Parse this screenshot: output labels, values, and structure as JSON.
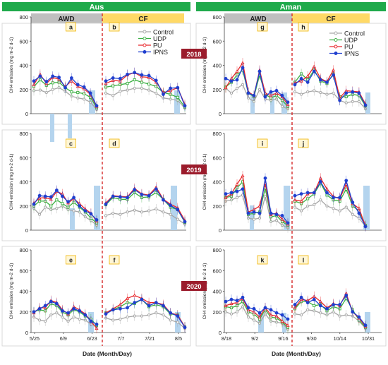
{
  "season_headers": [
    {
      "label": "Aus",
      "color": "#1faa4b"
    },
    {
      "label": "Aman",
      "color": "#1faa4b"
    }
  ],
  "treatment_headers": [
    {
      "label": "AWD",
      "color": "#bfbfbf"
    },
    {
      "label": "CF",
      "color": "#ffd966"
    },
    {
      "label": "AWD",
      "color": "#bfbfbf"
    },
    {
      "label": "CF",
      "color": "#ffd966"
    }
  ],
  "year_badges": [
    "2018",
    "2019",
    "2020"
  ],
  "badge_color": "#9b1c2c",
  "panel_letters": [
    "a",
    "b",
    "g",
    "h",
    "c",
    "d",
    "i",
    "j",
    "e",
    "f",
    "k",
    "l"
  ],
  "y_axis_title": "CH4 emission (mg m-2 d-1)",
  "y_ticks": [
    "0",
    "200",
    "400",
    "600",
    "800"
  ],
  "x_axis_title": "Date (Month/Day)",
  "aus_x_ticks": [
    "5/25",
    "6/9",
    "6/23",
    "7/7",
    "7/21",
    "8/5"
  ],
  "aman_x_ticks": [
    "8/18",
    "9/2",
    "9/16",
    "9/30",
    "10/14",
    "10/31"
  ],
  "legend": [
    {
      "name": "Control",
      "color": "#a6a6a6"
    },
    {
      "name": "UDP",
      "color": "#3cb043"
    },
    {
      "name": "PU",
      "color": "#e8262a"
    },
    {
      "name": "IPNS",
      "color": "#1f3fcf"
    }
  ],
  "colors": {
    "border": "#d9d9d9",
    "divider": "#d62728",
    "rain_bar": "#b4d4ee"
  },
  "chart_data": [
    {
      "type": "line",
      "panel": "a",
      "season": "Aus",
      "year": "2018",
      "water": "AWD",
      "ylim": [
        0,
        800
      ],
      "x": [
        0,
        1,
        2,
        3,
        4,
        5,
        6,
        7,
        8,
        9,
        10
      ],
      "series": [
        {
          "name": "Control",
          "values": [
            190,
            195,
            175,
            200,
            215,
            185,
            145,
            130,
            120,
            95,
            35
          ]
        },
        {
          "name": "UDP",
          "values": [
            225,
            280,
            235,
            255,
            260,
            215,
            180,
            175,
            165,
            135,
            50
          ]
        },
        {
          "name": "PU",
          "values": [
            240,
            325,
            250,
            300,
            285,
            225,
            270,
            225,
            205,
            160,
            60
          ]
        },
        {
          "name": "IPNS",
          "values": [
            270,
            310,
            265,
            310,
            300,
            215,
            295,
            240,
            220,
            170,
            65
          ]
        }
      ]
    },
    {
      "type": "line",
      "panel": "b",
      "season": "Aus",
      "year": "2018",
      "water": "CF",
      "ylim": [
        0,
        800
      ],
      "x": [
        0,
        1,
        2,
        3,
        4,
        5,
        6,
        7,
        8,
        9,
        10,
        11
      ],
      "series": [
        {
          "name": "Control",
          "values": [
            170,
            150,
            185,
            195,
            210,
            210,
            195,
            170,
            130,
            120,
            110,
            45
          ]
        },
        {
          "name": "UDP",
          "values": [
            220,
            230,
            240,
            250,
            280,
            260,
            245,
            225,
            175,
            160,
            135,
            55
          ]
        },
        {
          "name": "PU",
          "values": [
            250,
            275,
            270,
            320,
            340,
            305,
            300,
            260,
            175,
            190,
            215,
            75
          ]
        },
        {
          "name": "IPNS",
          "values": [
            270,
            295,
            290,
            325,
            340,
            320,
            315,
            275,
            160,
            210,
            215,
            65
          ]
        }
      ]
    },
    {
      "type": "line",
      "panel": "g",
      "season": "Aman",
      "year": "2018",
      "water": "AWD",
      "ylim": [
        0,
        800
      ],
      "x": [
        0,
        1,
        2,
        3,
        4,
        5,
        6,
        7,
        8,
        9,
        10,
        11
      ],
      "series": [
        {
          "name": "Control",
          "values": [
            210,
            170,
            210,
            240,
            130,
            100,
            200,
            120,
            110,
            120,
            60,
            40
          ]
        },
        {
          "name": "UDP",
          "values": [
            220,
            260,
            320,
            360,
            170,
            140,
            320,
            160,
            130,
            150,
            110,
            60
          ]
        },
        {
          "name": "PU",
          "values": [
            215,
            290,
            350,
            420,
            180,
            150,
            360,
            170,
            150,
            170,
            140,
            75
          ]
        },
        {
          "name": "IPNS",
          "values": [
            290,
            270,
            280,
            380,
            170,
            150,
            350,
            140,
            180,
            190,
            150,
            95
          ]
        }
      ]
    },
    {
      "type": "line",
      "panel": "h",
      "season": "Aman",
      "year": "2018",
      "water": "CF",
      "ylim": [
        0,
        800
      ],
      "x": [
        0,
        1,
        2,
        3,
        4,
        5,
        6,
        7,
        8,
        9,
        10,
        11
      ],
      "series": [
        {
          "name": "Control",
          "values": [
            180,
            160,
            180,
            190,
            175,
            160,
            170,
            110,
            90,
            100,
            100,
            40
          ]
        },
        {
          "name": "UDP",
          "values": [
            260,
            330,
            280,
            360,
            270,
            250,
            330,
            140,
            140,
            160,
            150,
            65
          ]
        },
        {
          "name": "PU",
          "values": [
            255,
            270,
            310,
            390,
            290,
            265,
            360,
            130,
            190,
            185,
            180,
            80
          ]
        },
        {
          "name": "IPNS",
          "values": [
            240,
            290,
            260,
            350,
            280,
            260,
            320,
            110,
            170,
            180,
            170,
            70
          ]
        }
      ]
    },
    {
      "type": "line",
      "panel": "c",
      "season": "Aus",
      "year": "2019",
      "water": "AWD",
      "ylim": [
        0,
        800
      ],
      "x": [
        0,
        1,
        2,
        3,
        4,
        5,
        6,
        7,
        8,
        9,
        10,
        11
      ],
      "series": [
        {
          "name": "Control",
          "values": [
            180,
            130,
            190,
            170,
            180,
            200,
            170,
            160,
            150,
            110,
            80,
            40
          ]
        },
        {
          "name": "UDP",
          "values": [
            200,
            240,
            240,
            200,
            250,
            220,
            190,
            230,
            190,
            150,
            100,
            60
          ]
        },
        {
          "name": "PU",
          "values": [
            225,
            265,
            270,
            255,
            320,
            300,
            225,
            260,
            220,
            175,
            140,
            75
          ]
        },
        {
          "name": "IPNS",
          "values": [
            215,
            285,
            280,
            275,
            330,
            280,
            235,
            270,
            200,
            160,
            135,
            85
          ]
        }
      ]
    },
    {
      "type": "line",
      "panel": "d",
      "season": "Aus",
      "year": "2019",
      "water": "CF",
      "ylim": [
        0,
        800
      ],
      "x": [
        0,
        1,
        2,
        3,
        4,
        5,
        6,
        7,
        8,
        9,
        10,
        11
      ],
      "series": [
        {
          "name": "Control",
          "values": [
            120,
            140,
            130,
            150,
            165,
            150,
            160,
            175,
            150,
            130,
            90,
            50
          ]
        },
        {
          "name": "UDP",
          "values": [
            210,
            270,
            255,
            255,
            310,
            270,
            275,
            310,
            255,
            190,
            170,
            65
          ]
        },
        {
          "name": "PU",
          "values": [
            225,
            285,
            280,
            275,
            345,
            300,
            290,
            355,
            255,
            215,
            185,
            80
          ]
        },
        {
          "name": "IPNS",
          "values": [
            215,
            280,
            275,
            270,
            335,
            295,
            285,
            340,
            250,
            205,
            170,
            70
          ]
        }
      ]
    },
    {
      "type": "line",
      "panel": "i",
      "season": "Aman",
      "year": "2019",
      "water": "AWD",
      "ylim": [
        0,
        800
      ],
      "x": [
        0,
        1,
        2,
        3,
        4,
        5,
        6,
        7,
        8,
        9,
        10,
        11
      ],
      "series": [
        {
          "name": "Control",
          "values": [
            240,
            250,
            270,
            290,
            100,
            90,
            100,
            280,
            70,
            80,
            40,
            20
          ]
        },
        {
          "name": "UDP",
          "values": [
            270,
            280,
            350,
            400,
            130,
            140,
            150,
            350,
            110,
            120,
            70,
            40
          ]
        },
        {
          "name": "PU",
          "values": [
            270,
            300,
            380,
            450,
            150,
            170,
            200,
            390,
            130,
            140,
            90,
            50
          ]
        },
        {
          "name": "IPNS",
          "values": [
            300,
            310,
            320,
            340,
            140,
            150,
            140,
            430,
            140,
            130,
            120,
            60
          ]
        }
      ]
    },
    {
      "type": "line",
      "panel": "j",
      "season": "Aman",
      "year": "2019",
      "water": "CF",
      "ylim": [
        0,
        800
      ],
      "x": [
        0,
        1,
        2,
        3,
        4,
        5,
        6,
        7,
        8,
        9,
        10,
        11
      ],
      "series": [
        {
          "name": "Control",
          "values": [
            190,
            160,
            200,
            210,
            250,
            200,
            180,
            160,
            190,
            130,
            100,
            30
          ]
        },
        {
          "name": "UDP",
          "values": [
            240,
            220,
            260,
            300,
            390,
            290,
            250,
            240,
            340,
            200,
            160,
            40
          ]
        },
        {
          "name": "PU",
          "values": [
            250,
            240,
            300,
            310,
            430,
            340,
            280,
            260,
            380,
            220,
            180,
            35
          ]
        },
        {
          "name": "IPNS",
          "values": [
            285,
            300,
            310,
            310,
            400,
            310,
            270,
            270,
            410,
            230,
            140,
            30
          ]
        }
      ]
    },
    {
      "type": "line",
      "panel": "e",
      "season": "Aus",
      "year": "2020",
      "water": "AWD",
      "ylim": [
        0,
        800
      ],
      "x": [
        0,
        1,
        2,
        3,
        4,
        5,
        6,
        7,
        8,
        9,
        10,
        11
      ],
      "series": [
        {
          "name": "Control",
          "values": [
            150,
            120,
            110,
            170,
            190,
            150,
            110,
            150,
            130,
            120,
            80,
            60
          ]
        },
        {
          "name": "UDP",
          "values": [
            200,
            220,
            210,
            280,
            260,
            200,
            170,
            220,
            200,
            160,
            130,
            70
          ]
        },
        {
          "name": "PU",
          "values": [
            190,
            240,
            240,
            310,
            290,
            220,
            180,
            250,
            220,
            180,
            110,
            40
          ]
        },
        {
          "name": "IPNS",
          "values": [
            200,
            230,
            260,
            300,
            280,
            210,
            190,
            230,
            210,
            170,
            110,
            80
          ]
        }
      ]
    },
    {
      "type": "line",
      "panel": "f",
      "season": "Aus",
      "year": "2020",
      "water": "CF",
      "ylim": [
        0,
        800
      ],
      "x": [
        0,
        1,
        2,
        3,
        4,
        5,
        6,
        7,
        8,
        9,
        10,
        11
      ],
      "series": [
        {
          "name": "Control",
          "values": [
            140,
            120,
            130,
            150,
            160,
            160,
            170,
            190,
            170,
            120,
            100,
            40
          ]
        },
        {
          "name": "UDP",
          "values": [
            190,
            220,
            250,
            290,
            280,
            320,
            250,
            270,
            250,
            180,
            170,
            55
          ]
        },
        {
          "name": "PU",
          "values": [
            190,
            230,
            270,
            330,
            360,
            330,
            290,
            290,
            270,
            190,
            170,
            55
          ]
        },
        {
          "name": "IPNS",
          "values": [
            180,
            220,
            230,
            240,
            290,
            320,
            260,
            290,
            260,
            190,
            160,
            50
          ]
        }
      ]
    },
    {
      "type": "line",
      "panel": "k",
      "season": "Aman",
      "year": "2020",
      "water": "AWD",
      "ylim": [
        0,
        800
      ],
      "x": [
        0,
        1,
        2,
        3,
        4,
        5,
        6,
        7,
        8,
        9,
        10,
        11
      ],
      "series": [
        {
          "name": "Control",
          "values": [
            200,
            180,
            200,
            250,
            150,
            120,
            90,
            180,
            110,
            100,
            90,
            30
          ]
        },
        {
          "name": "UDP",
          "values": [
            250,
            240,
            260,
            300,
            200,
            180,
            130,
            220,
            150,
            140,
            100,
            50
          ]
        },
        {
          "name": "PU",
          "values": [
            260,
            280,
            290,
            330,
            220,
            200,
            150,
            240,
            170,
            160,
            110,
            70
          ]
        },
        {
          "name": "IPNS",
          "values": [
            300,
            320,
            310,
            340,
            240,
            230,
            190,
            240,
            220,
            190,
            170,
            130
          ]
        }
      ]
    },
    {
      "type": "line",
      "panel": "l",
      "season": "Aman",
      "year": "2020",
      "water": "CF",
      "ylim": [
        0,
        800
      ],
      "x": [
        0,
        1,
        2,
        3,
        4,
        5,
        6,
        7,
        8,
        9,
        10,
        11
      ],
      "series": [
        {
          "name": "Control",
          "values": [
            180,
            170,
            220,
            210,
            190,
            170,
            200,
            160,
            170,
            160,
            110,
            40
          ]
        },
        {
          "name": "UDP",
          "values": [
            230,
            300,
            300,
            260,
            270,
            210,
            250,
            230,
            330,
            220,
            120,
            50
          ]
        },
        {
          "name": "PU",
          "values": [
            240,
            320,
            310,
            350,
            300,
            240,
            280,
            260,
            380,
            200,
            140,
            60
          ]
        },
        {
          "name": "IPNS",
          "values": [
            270,
            340,
            290,
            320,
            260,
            230,
            270,
            270,
            360,
            200,
            150,
            70
          ]
        }
      ]
    }
  ]
}
